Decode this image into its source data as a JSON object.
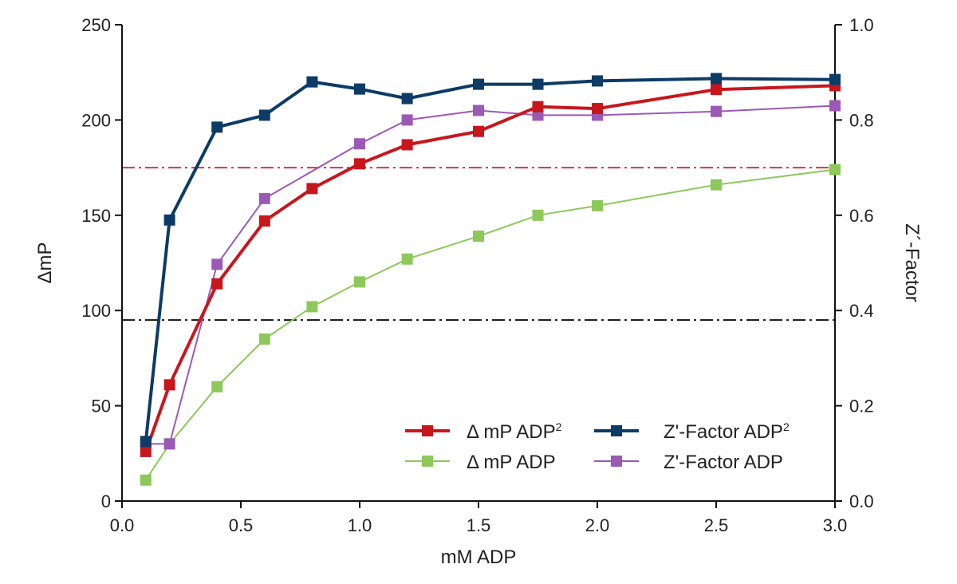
{
  "chart_data": {
    "type": "line",
    "xlabel": "mM ADP",
    "ylabel_left": "ΔmP",
    "ylabel_right": "Z´-Factor",
    "xlim": [
      0.0,
      3.0
    ],
    "ylim_left": [
      0,
      250
    ],
    "ylim_right": [
      0.0,
      1.0
    ],
    "x_ticks": [
      0.0,
      0.5,
      1.0,
      1.5,
      2.0,
      2.5,
      3.0
    ],
    "x_tick_labels": [
      "0.0",
      "0.5",
      "1.0",
      "1.5",
      "2.0",
      "2.5",
      "3.0"
    ],
    "y_left_ticks": [
      0,
      50,
      100,
      150,
      200,
      250
    ],
    "y_left_tick_labels": [
      "0",
      "50",
      "100",
      "150",
      "200",
      "250"
    ],
    "y_right_ticks": [
      0.0,
      0.2,
      0.4,
      0.6,
      0.8,
      1.0
    ],
    "y_right_tick_labels": [
      "0.0",
      "0.2",
      "0.4",
      "0.6",
      "0.8",
      "1.0"
    ],
    "x": [
      0.1,
      0.2,
      0.4,
      0.6,
      0.8,
      1.0,
      1.2,
      1.5,
      1.75,
      2.0,
      2.5,
      3.0
    ],
    "series": [
      {
        "name": "Δ mP ADP²",
        "label_main": "Δ mP ADP",
        "label_sup": "2",
        "axis": "left",
        "color": "#c8161d",
        "values": [
          26,
          61,
          114,
          147,
          164,
          177,
          187,
          194,
          207,
          206,
          216,
          218
        ]
      },
      {
        "name": "Δ mP ADP",
        "label_main": "Δ mP ADP",
        "label_sup": "",
        "axis": "left",
        "color": "#8cc85a",
        "values": [
          11,
          30,
          60,
          85,
          102,
          115,
          127,
          139,
          150,
          155,
          166,
          174
        ]
      },
      {
        "name": "Z'-Factor ADP²",
        "label_main": "Z'-Factor ADP",
        "label_sup": "2",
        "axis": "right",
        "color": "#0d3b66",
        "values": [
          0.125,
          0.59,
          0.785,
          0.81,
          0.88,
          0.865,
          0.845,
          0.875,
          0.875,
          0.882,
          0.887,
          0.885
        ]
      },
      {
        "name": "Z'-Factor ADP",
        "label_main": "Z'-Factor ADP",
        "label_sup": "",
        "axis": "right",
        "color": "#9b59b6",
        "values": [
          0.12,
          0.12,
          0.497,
          0.635,
          null,
          0.75,
          0.8,
          0.82,
          0.81,
          0.81,
          0.818,
          0.83
        ]
      }
    ],
    "reference_lines": [
      {
        "axis": "left",
        "value": 175,
        "color": "#d6324a",
        "style": "dash-dot"
      },
      {
        "axis": "left",
        "value": 95,
        "color": "#111111",
        "style": "dash-dot"
      }
    ],
    "legend_placement": "bottom-right",
    "legend_order": [
      0,
      2,
      1,
      3
    ]
  }
}
